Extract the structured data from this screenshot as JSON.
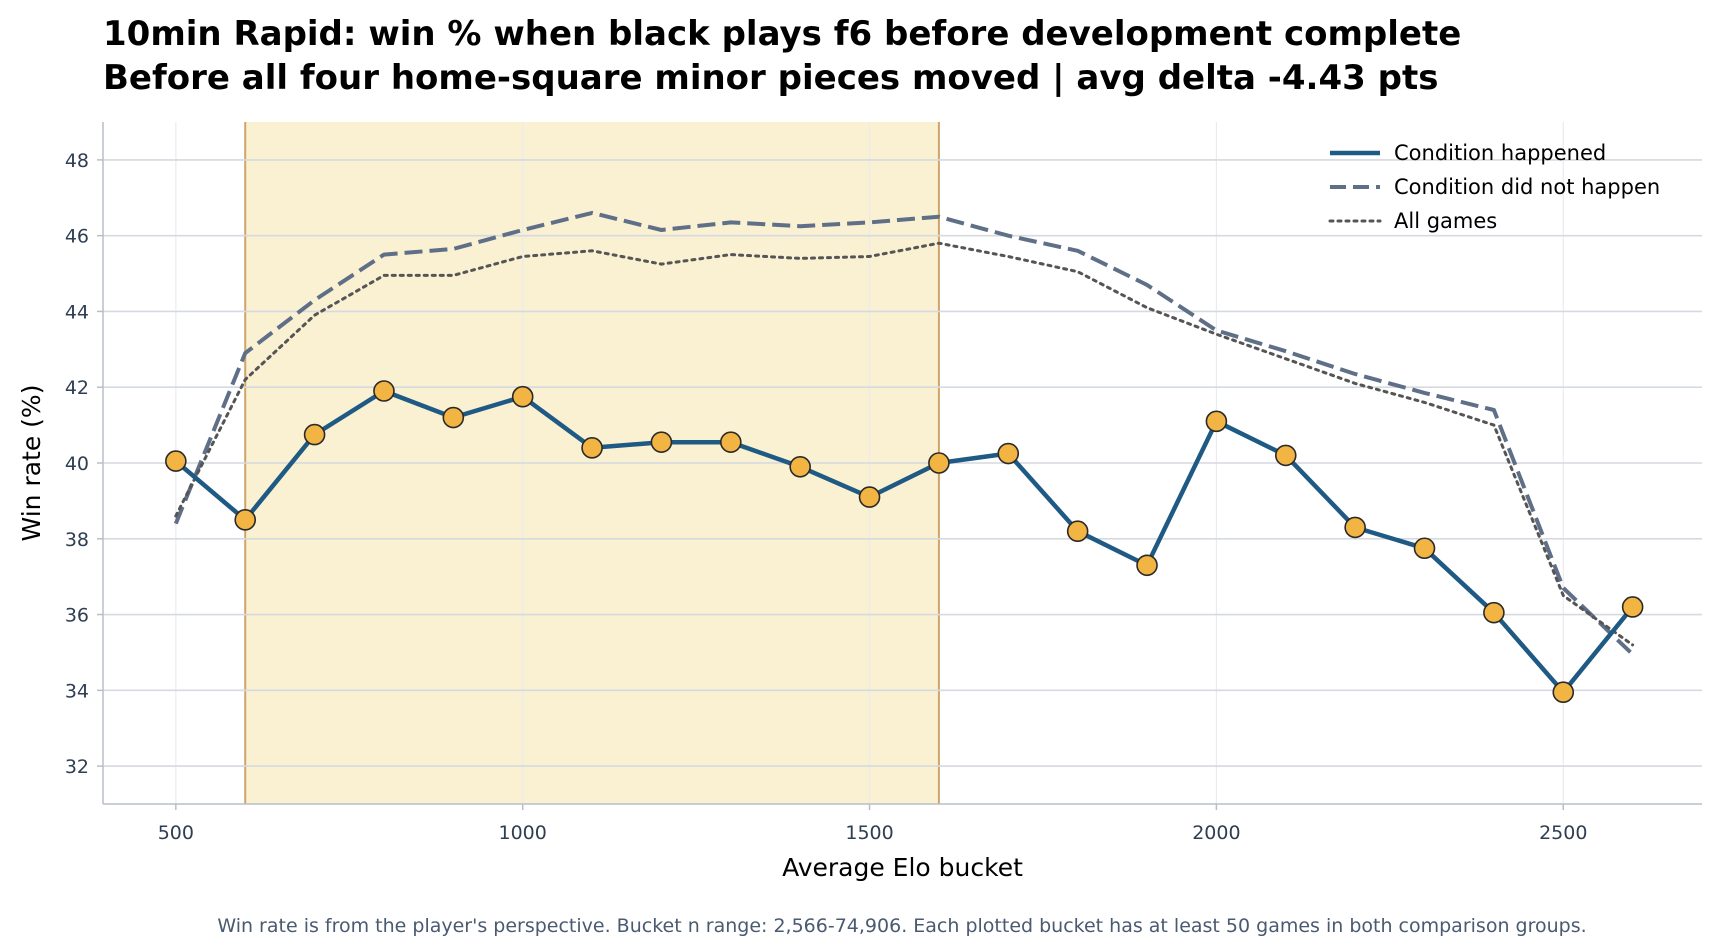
{
  "title_line1": "10min Rapid: win % when black plays f6 before development complete",
  "title_line2": "Before all four home-square minor pieces moved | avg delta -4.43 pts",
  "footnote": "Win rate is from the player's perspective. Bucket n range: 2,566-74,906. Each plotted bucket has at least 50 games in both comparison groups.",
  "chart_data": {
    "type": "line",
    "xlabel": "Average Elo bucket",
    "ylabel": "Win rate (%)",
    "xlim": [
      395,
      2700
    ],
    "ylim": [
      31,
      49
    ],
    "xticks": [
      500,
      1000,
      1500,
      2000,
      2500
    ],
    "yticks": [
      32,
      34,
      36,
      38,
      40,
      42,
      44,
      46,
      48
    ],
    "grid": true,
    "legend_position": "top-right",
    "highlight_band": {
      "x_start": 600,
      "x_end": 1600,
      "color": "#faf0d2"
    },
    "x": [
      500,
      600,
      700,
      800,
      900,
      1000,
      1100,
      1200,
      1300,
      1400,
      1500,
      1600,
      1700,
      1800,
      1900,
      2000,
      2100,
      2200,
      2300,
      2400,
      2500,
      2600
    ],
    "series": [
      {
        "name": "Condition happened",
        "style": "solid-markers",
        "color": "#1f5a85",
        "marker_color": "#f2b443",
        "values": [
          40.05,
          38.5,
          40.75,
          41.9,
          41.2,
          41.75,
          40.4,
          40.55,
          40.55,
          39.9,
          39.1,
          40.0,
          40.25,
          38.2,
          37.3,
          41.1,
          40.2,
          38.3,
          37.75,
          36.05,
          33.95,
          36.2
        ]
      },
      {
        "name": "Condition did not happen",
        "style": "dashed",
        "color": "#5f6f87",
        "values": [
          38.4,
          42.9,
          44.3,
          45.5,
          45.65,
          46.15,
          46.6,
          46.15,
          46.35,
          46.25,
          46.35,
          46.5,
          46.0,
          45.6,
          44.7,
          43.5,
          42.95,
          42.35,
          41.85,
          41.4,
          36.7,
          34.95
        ]
      },
      {
        "name": "All games",
        "style": "dotted",
        "color": "#555555",
        "values": [
          38.6,
          42.2,
          43.9,
          44.95,
          44.95,
          45.45,
          45.6,
          45.25,
          45.5,
          45.4,
          45.45,
          45.8,
          45.45,
          45.05,
          44.1,
          43.4,
          42.75,
          42.1,
          41.6,
          41.0,
          36.5,
          35.2
        ]
      }
    ]
  }
}
